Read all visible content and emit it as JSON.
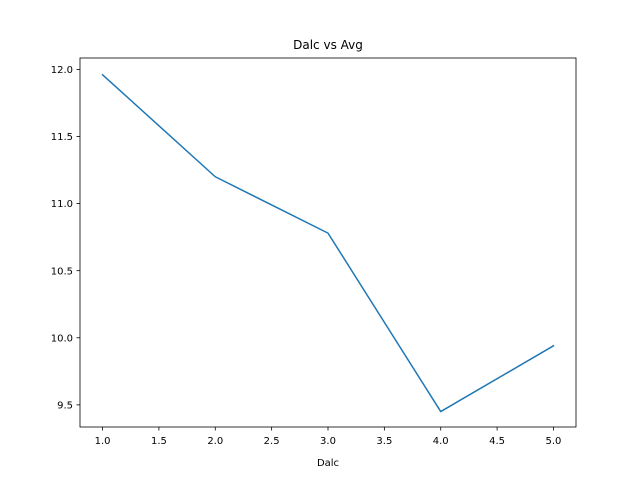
{
  "chart_data": {
    "type": "line",
    "title": "Dalc vs Avg",
    "xlabel": "Dalc",
    "ylabel": "",
    "x": [
      1,
      2,
      3,
      4,
      5
    ],
    "series": [
      {
        "values": [
          11.96,
          11.2,
          10.78,
          9.45,
          9.94
        ],
        "color": "#1f77b4"
      }
    ],
    "xlim": [
      0.8,
      5.2
    ],
    "ylim": [
      9.335,
      12.085
    ],
    "xticks": [
      1.0,
      1.5,
      2.0,
      2.5,
      3.0,
      3.5,
      4.0,
      4.5,
      5.0
    ],
    "xtick_labels": [
      "1.0",
      "1.5",
      "2.0",
      "2.5",
      "3.0",
      "3.5",
      "4.0",
      "4.5",
      "5.0"
    ],
    "yticks": [
      9.5,
      10.0,
      10.5,
      11.0,
      11.5,
      12.0
    ],
    "ytick_labels": [
      "9.5",
      "10.0",
      "10.5",
      "11.0",
      "11.5",
      "12.0"
    ],
    "grid": false,
    "legend": "none"
  }
}
